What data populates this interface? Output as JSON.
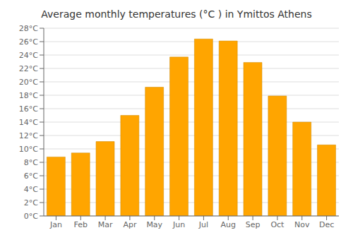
{
  "chart_data": {
    "type": "bar",
    "title": "Average monthly temperatures (°C ) in Ymittos Athens",
    "categories": [
      "Jan",
      "Feb",
      "Mar",
      "Apr",
      "May",
      "Jun",
      "Jul",
      "Aug",
      "Sep",
      "Oct",
      "Nov",
      "Dec"
    ],
    "values": [
      8.8,
      9.4,
      11.1,
      15.0,
      19.2,
      23.7,
      26.4,
      26.1,
      22.9,
      17.9,
      14.0,
      10.6
    ],
    "color": "#FFA500",
    "ylim": [
      0,
      28
    ],
    "yticks": [
      {
        "value": 0,
        "label": "0°C"
      },
      {
        "value": 2,
        "label": "2°C"
      },
      {
        "value": 4,
        "label": "4°C"
      },
      {
        "value": 6,
        "label": "6°C"
      },
      {
        "value": 8,
        "label": "8°C"
      },
      {
        "value": 10,
        "label": "10°C"
      },
      {
        "value": 12,
        "label": "12°C"
      },
      {
        "value": 14,
        "label": "14°C"
      },
      {
        "value": 16,
        "label": "16°C"
      },
      {
        "value": 18,
        "label": "18°C"
      },
      {
        "value": 20,
        "label": "20°C"
      },
      {
        "value": 22,
        "label": "22°C"
      },
      {
        "value": 24,
        "label": "24°C"
      },
      {
        "value": 26,
        "label": "26°C"
      },
      {
        "value": 28,
        "label": "28°C"
      }
    ],
    "grid": true
  }
}
